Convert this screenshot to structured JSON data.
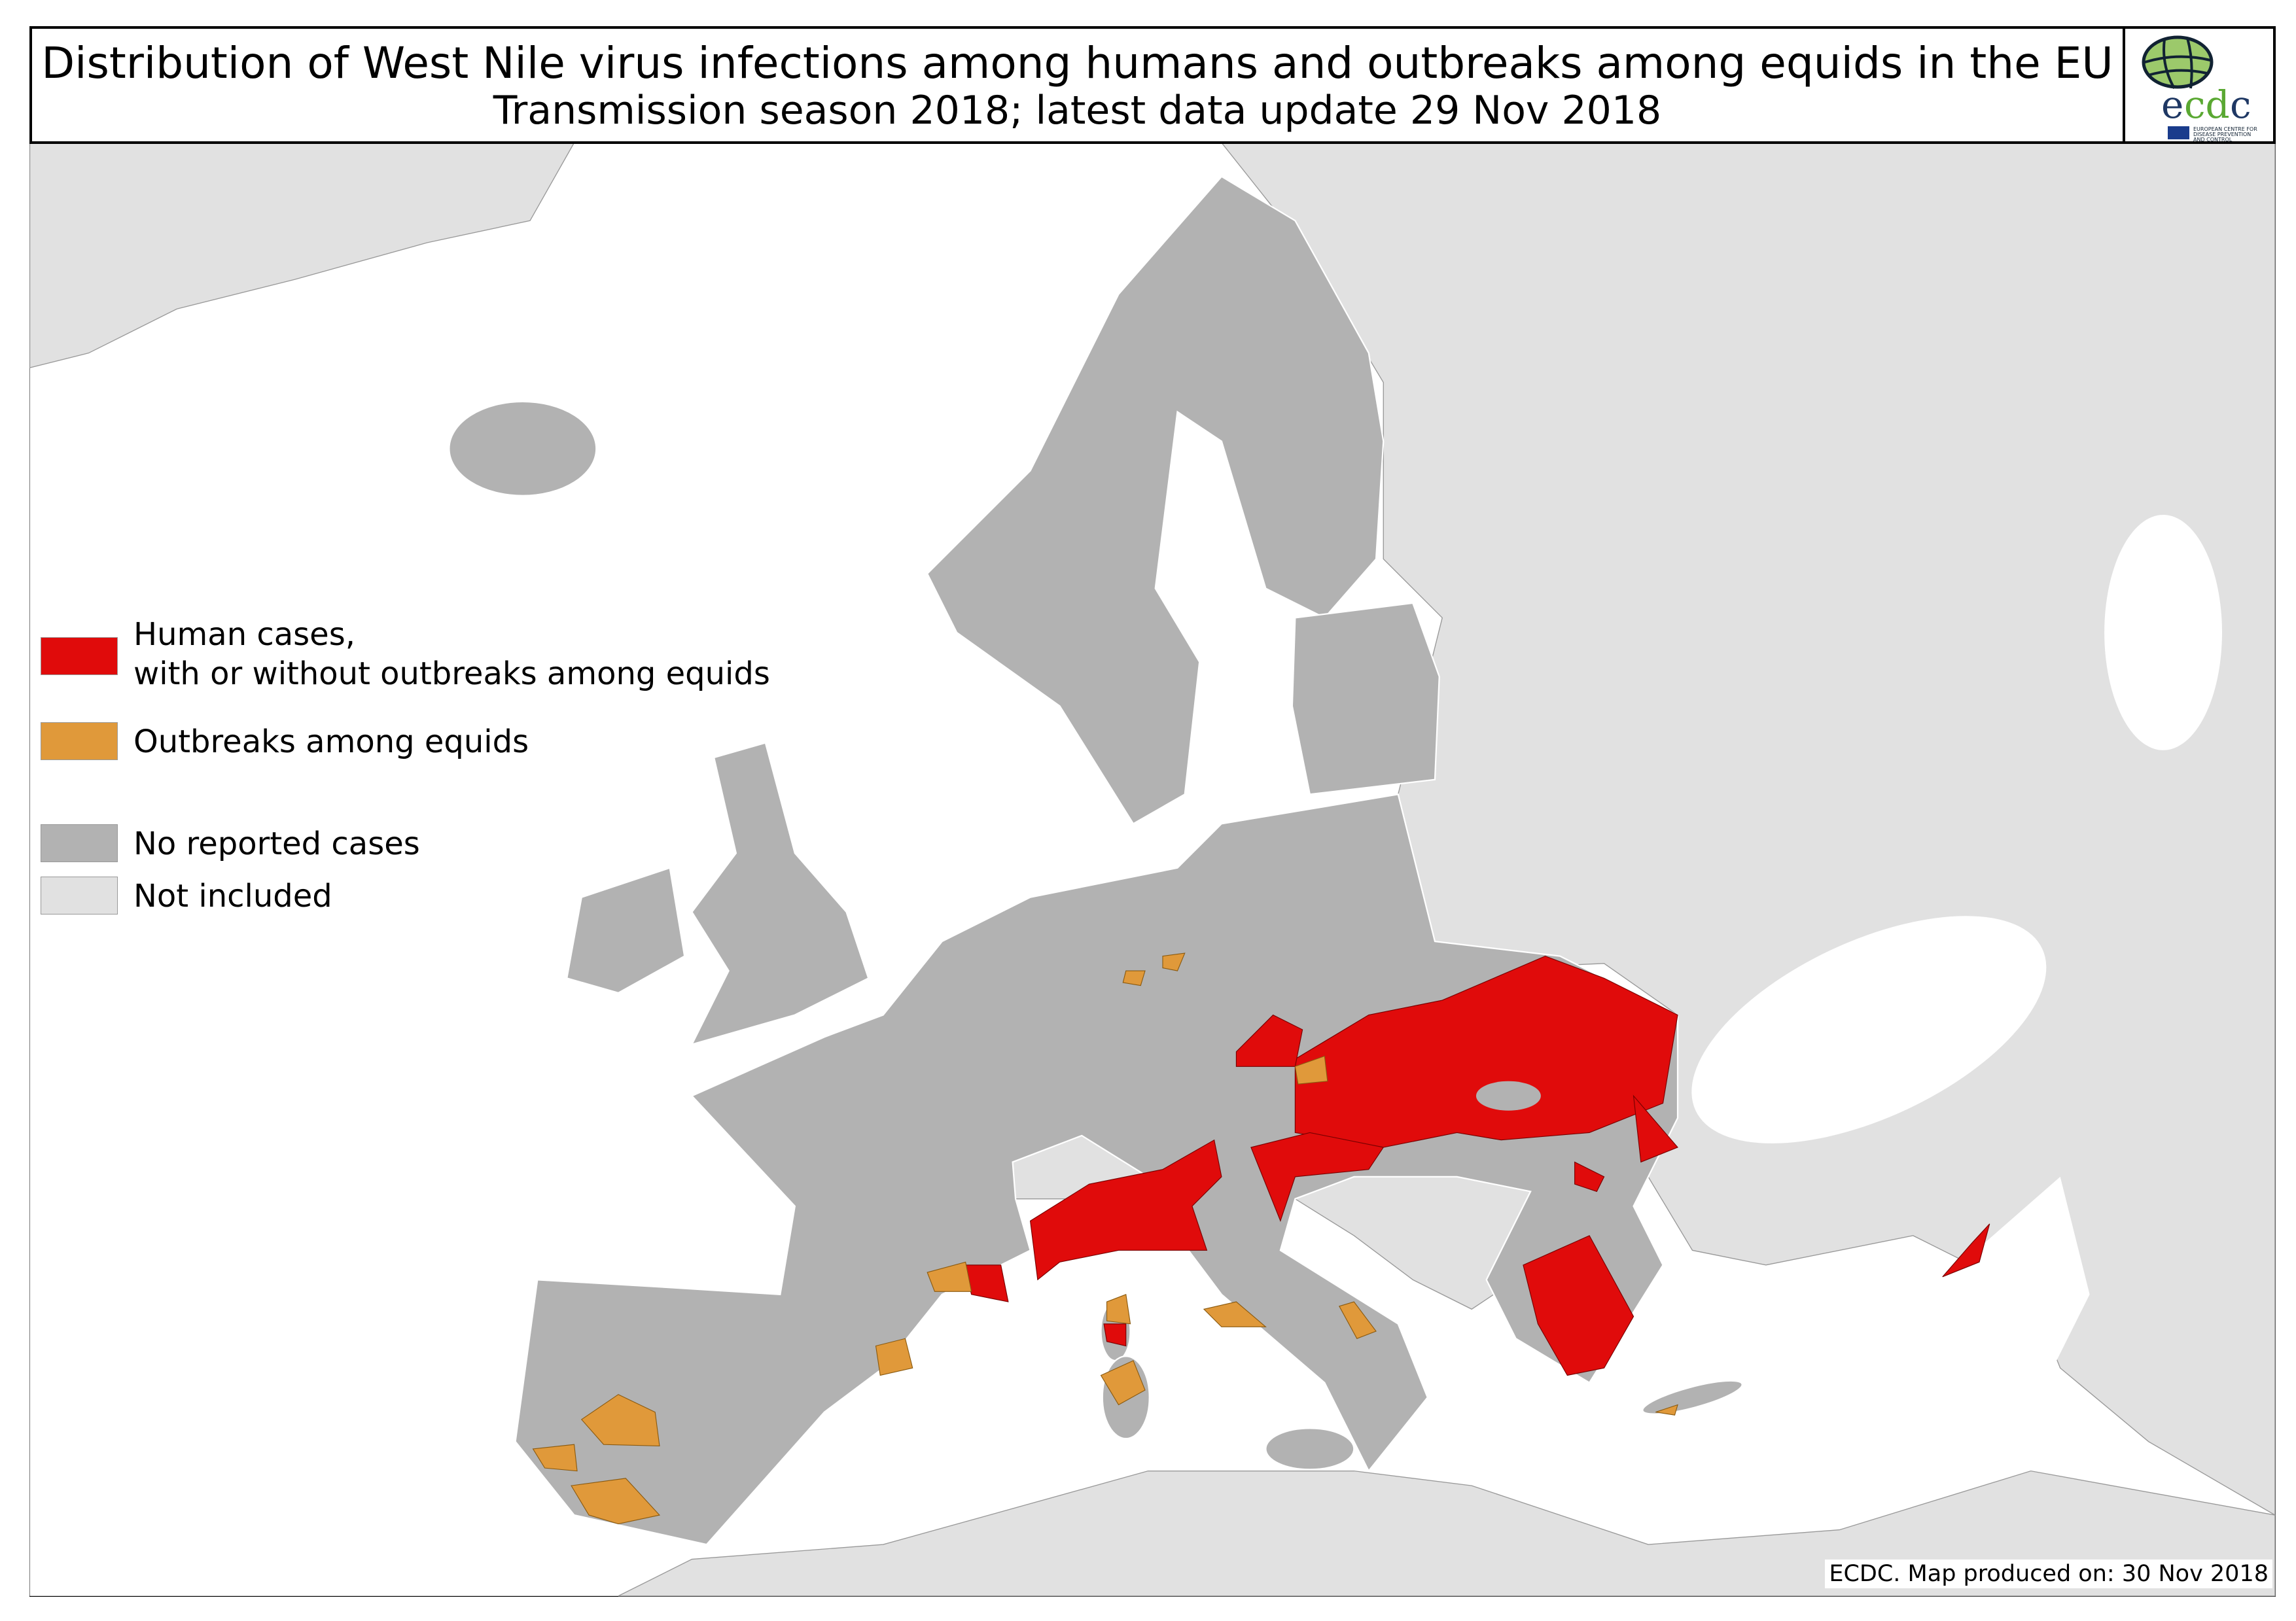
{
  "header": {
    "title": "Distribution of West Nile virus infections among humans and outbreaks among equids in the EU",
    "subtitle": "Transmission season 2018; latest data update 29 Nov 2018"
  },
  "logo": {
    "wordmark": "ecdc",
    "tagline": "EUROPEAN CENTRE FOR DISEASE PREVENTION AND CONTROL"
  },
  "legend": {
    "items": [
      {
        "label_line1": "Human cases,",
        "label_line2": "with or without outbreaks among equids",
        "color": "#e00b0b"
      },
      {
        "label": "Outbreaks among equids",
        "color": "#e0993a"
      },
      {
        "label": "No reported cases",
        "color": "#b2b2b2"
      },
      {
        "label": "Not included",
        "color": "#e1e1e1"
      }
    ]
  },
  "footer": {
    "credit": "ECDC. Map produced on: 30 Nov 2018"
  },
  "colors": {
    "sea": "#ffffff",
    "human_cases": "#e00b0b",
    "equid_outbreaks": "#e0993a",
    "no_cases": "#b2b2b2",
    "not_included": "#e1e1e1"
  }
}
